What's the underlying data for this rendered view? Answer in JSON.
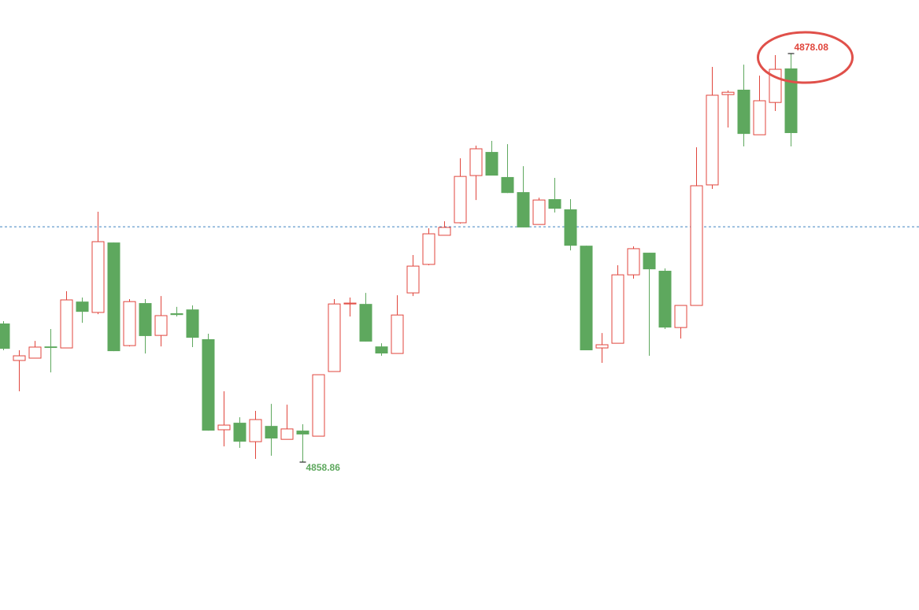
{
  "chart_data": {
    "type": "candlestick",
    "open": [
      4865.38,
      4863.64,
      4863.75,
      4864.3,
      4864.23,
      4866.41,
      4865.9,
      4869.19,
      4864.34,
      4866.34,
      4864.82,
      4865.86,
      4866.04,
      4864.64,
      4860.38,
      4860.71,
      4859.82,
      4860.56,
      4859.93,
      4860.34,
      4860.08,
      4863.12,
      4866.3,
      4866.3,
      4864.3,
      4863.97,
      4866.82,
      4868.16,
      4869.53,
      4870.12,
      4872.34,
      4873.45,
      4872.27,
      4871.56,
      4870.04,
      4871.23,
      4870.75,
      4869.04,
      4864.23,
      4864.45,
      4867.67,
      4868.71,
      4867.86,
      4865.19,
      4866.23,
      4871.9,
      4876.15,
      4876.38,
      4874.26,
      4875.78,
      4877.38
    ],
    "high": [
      4865.49,
      4864.12,
      4864.56,
      4865.12,
      4866.9,
      4866.6,
      4870.64,
      4869.19,
      4866.53,
      4866.53,
      4866.67,
      4866.16,
      4866.23,
      4864.9,
      4862.19,
      4860.97,
      4861.27,
      4861.6,
      4861.56,
      4860.64,
      4862.97,
      4866.53,
      4866.6,
      4866.82,
      4864.45,
      4866.71,
      4868.6,
      4869.86,
      4870.19,
      4873.15,
      4873.75,
      4873.97,
      4873.82,
      4872.78,
      4871.3,
      4872.23,
      4871.23,
      4869.04,
      4864.93,
      4868.12,
      4869.01,
      4868.71,
      4867.97,
      4866.23,
      4873.67,
      4877.45,
      4876.34,
      4877.56,
      4877.04,
      4878.01,
      4878.08
    ],
    "low": [
      4864.12,
      4862.19,
      4863.75,
      4863.08,
      4864.23,
      4865.41,
      4865.82,
      4864.08,
      4864.3,
      4863.97,
      4864.3,
      4865.71,
      4864.27,
      4860.34,
      4859.6,
      4859.53,
      4859.01,
      4859.16,
      4859.93,
      4858.86,
      4860.08,
      4863.12,
      4865.71,
      4864.53,
      4863.86,
      4863.97,
      4866.67,
      4868.12,
      4869.53,
      4870.08,
      4871.19,
      4872.34,
      4871.52,
      4869.9,
      4870.04,
      4870.6,
      4868.82,
      4864.12,
      4863.53,
      4864.45,
      4867.49,
      4863.86,
      4865.12,
      4864.67,
      4866.23,
      4871.71,
      4874.6,
      4873.71,
      4874.26,
      4875.38,
      4873.71
    ],
    "close": [
      4864.19,
      4863.86,
      4864.27,
      4864.23,
      4866.49,
      4865.93,
      4869.23,
      4864.08,
      4866.41,
      4864.79,
      4865.75,
      4865.78,
      4864.71,
      4860.34,
      4860.6,
      4859.82,
      4860.86,
      4859.97,
      4860.42,
      4860.16,
      4862.97,
      4866.3,
      4866.34,
      4864.53,
      4863.97,
      4865.78,
      4868.08,
      4869.6,
      4869.9,
      4872.3,
      4873.6,
      4872.34,
      4871.52,
      4869.9,
      4871.19,
      4870.78,
      4869.04,
      4864.12,
      4864.38,
      4867.67,
      4868.9,
      4867.93,
      4865.19,
      4866.23,
      4871.86,
      4876.12,
      4876.26,
      4874.3,
      4875.86,
      4877.34,
      4874.34
    ],
    "up_color": "#e0453c",
    "down_color": "#5ea85e",
    "ylim": [
      4851.9,
      4880.6
    ],
    "reference_line": {
      "value": 4869.93,
      "color": "#3f84c0"
    }
  }
}
